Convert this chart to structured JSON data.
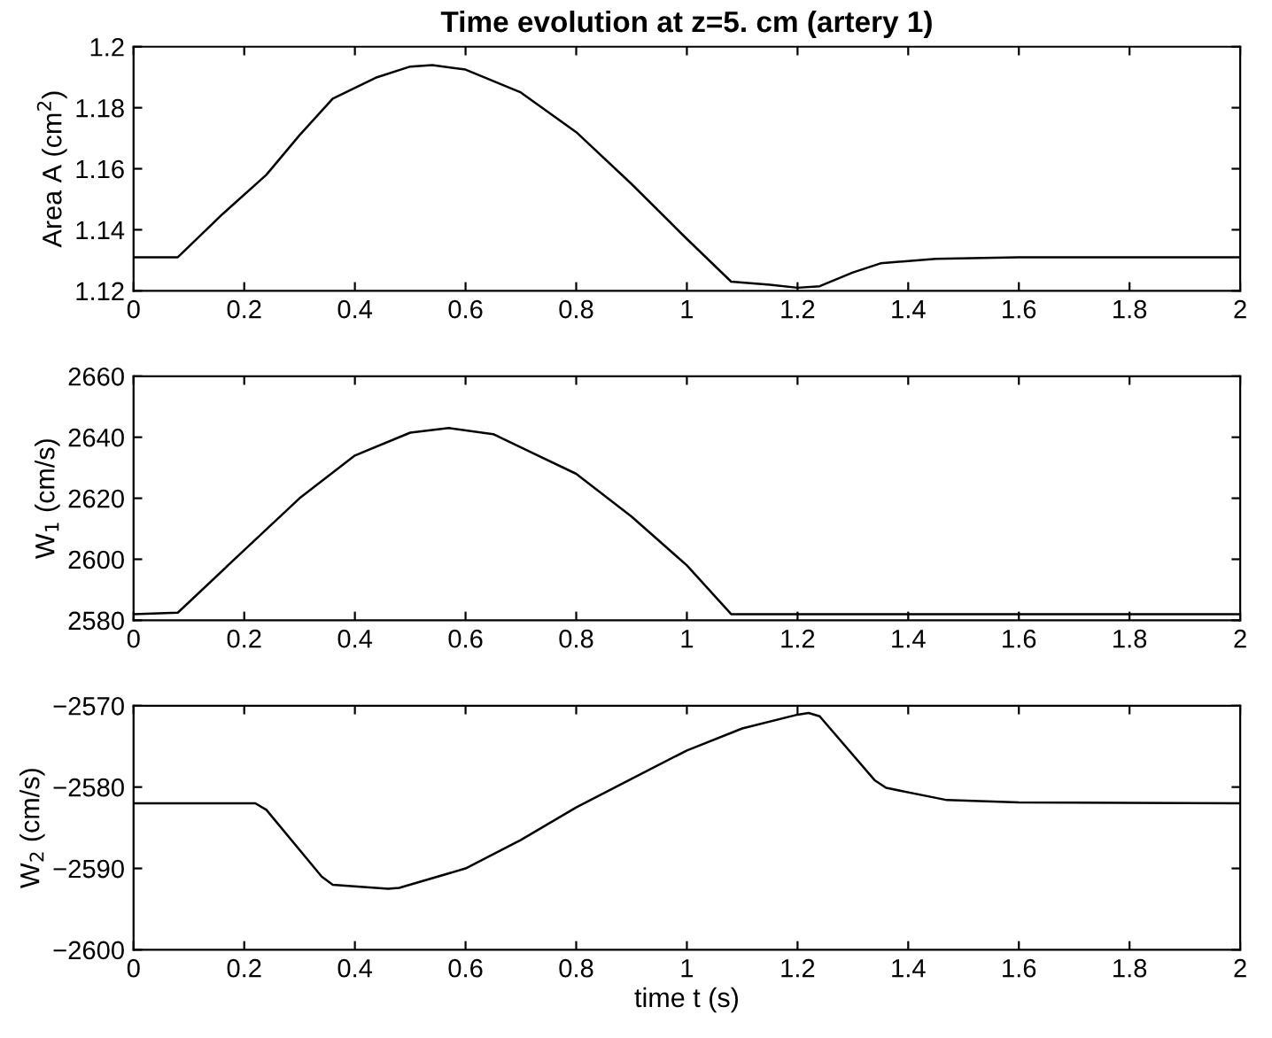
{
  "chart_data": [
    {
      "type": "line",
      "title": "Time evolution at z=5. cm (artery 1)",
      "ylabel": "Area A (cm$^{2}$)",
      "x": [
        0,
        0.08,
        0.16,
        0.24,
        0.3,
        0.36,
        0.44,
        0.5,
        0.54,
        0.6,
        0.7,
        0.8,
        0.9,
        1.0,
        1.08,
        1.15,
        1.2,
        1.24,
        1.3,
        1.35,
        1.45,
        1.6,
        2
      ],
      "series": [
        {
          "color": "#000000",
          "values": [
            1.131,
            1.131,
            1.145,
            1.158,
            1.171,
            1.183,
            1.19,
            1.1935,
            1.194,
            1.1925,
            1.185,
            1.172,
            1.155,
            1.137,
            1.123,
            1.122,
            1.121,
            1.1215,
            1.126,
            1.129,
            1.1305,
            1.131,
            1.131
          ]
        }
      ],
      "xlim": [
        0,
        2
      ],
      "xticks": [
        0,
        0.2,
        0.4,
        0.6,
        0.8,
        1,
        1.2,
        1.4,
        1.6,
        1.8,
        2
      ],
      "ylim": [
        1.12,
        1.2
      ],
      "yticks": [
        1.12,
        1.14,
        1.16,
        1.18,
        1.2
      ]
    },
    {
      "type": "line",
      "ylabel": "W$_{1}$ (cm/s)",
      "x": [
        0,
        0.08,
        0.2,
        0.3,
        0.4,
        0.5,
        0.57,
        0.65,
        0.8,
        0.9,
        1.0,
        1.08,
        2
      ],
      "series": [
        {
          "color": "#000000",
          "values": [
            2582,
            2582.5,
            2603,
            2620,
            2634,
            2641.5,
            2643,
            2641,
            2628,
            2614,
            2598,
            2582,
            2582
          ]
        }
      ],
      "xlim": [
        0,
        2
      ],
      "xticks": [
        0,
        0.2,
        0.4,
        0.6,
        0.8,
        1,
        1.2,
        1.4,
        1.6,
        1.8,
        2
      ],
      "ylim": [
        2580,
        2660
      ],
      "yticks": [
        2580,
        2600,
        2620,
        2640,
        2660
      ]
    },
    {
      "type": "line",
      "xlabel": "time t (s)",
      "ylabel": "W$_{2}$ (cm/s)",
      "x": [
        0,
        0.22,
        0.24,
        0.34,
        0.36,
        0.46,
        0.48,
        0.6,
        0.7,
        0.8,
        0.9,
        1.0,
        1.1,
        1.2,
        1.22,
        1.24,
        1.34,
        1.36,
        1.47,
        1.6,
        2
      ],
      "series": [
        {
          "color": "#000000",
          "values": [
            -2582,
            -2582,
            -2582.8,
            -2591,
            -2592,
            -2592.5,
            -2592.4,
            -2590,
            -2586.5,
            -2582.5,
            -2579,
            -2575.5,
            -2572.8,
            -2571.1,
            -2570.9,
            -2571.3,
            -2579.2,
            -2580.1,
            -2581.6,
            -2581.9,
            -2582
          ]
        }
      ],
      "xlim": [
        0,
        2
      ],
      "xticks": [
        0,
        0.2,
        0.4,
        0.6,
        0.8,
        1,
        1.2,
        1.4,
        1.6,
        1.8,
        2
      ],
      "ylim": [
        -2600,
        -2570
      ],
      "yticks": [
        {
          "value": -2600,
          "label": "−2600"
        },
        {
          "value": -2590,
          "label": "−2590"
        },
        {
          "value": -2580,
          "label": "−2580"
        },
        {
          "value": -2570,
          "label": "−2570"
        }
      ]
    }
  ]
}
